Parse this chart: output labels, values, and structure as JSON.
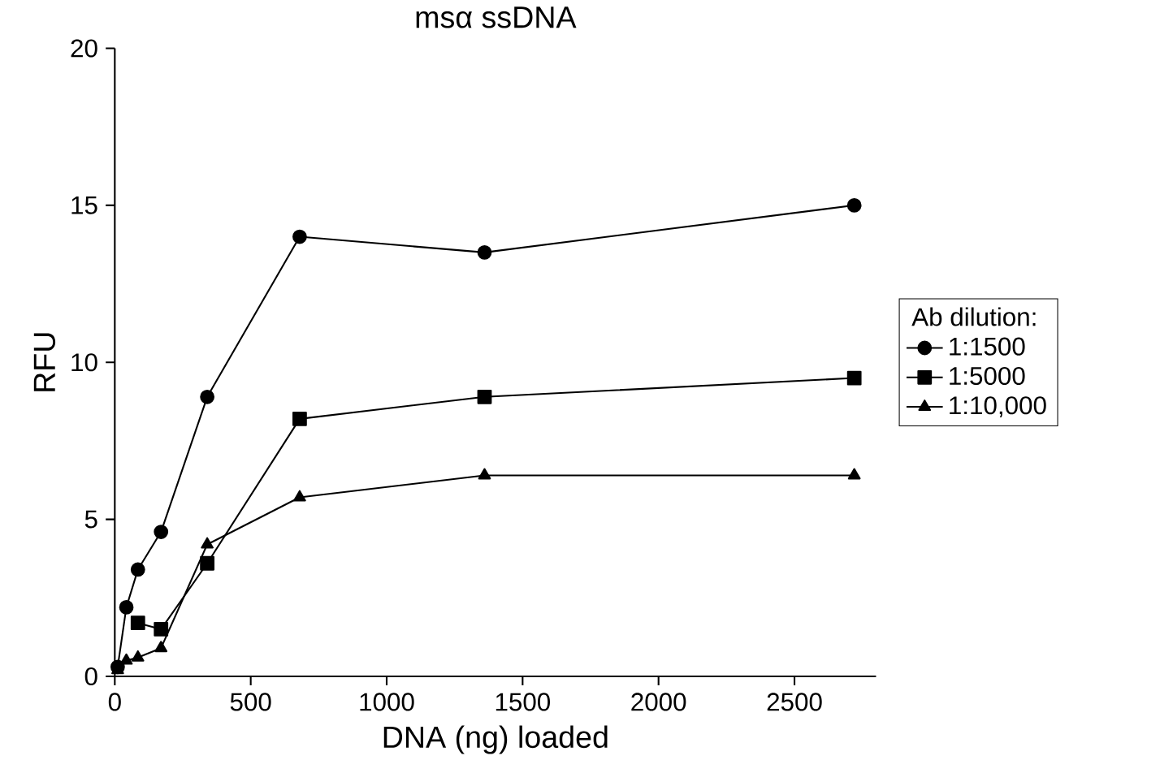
{
  "chart_data": {
    "type": "line",
    "title": "msα ssDNA",
    "xlabel": "DNA (ng) loaded",
    "ylabel": "RFU",
    "legend_title": "Ab dilution:",
    "x": [
      10.6,
      21.25,
      42.5,
      85,
      170,
      340,
      680,
      1360,
      2720
    ],
    "series": [
      {
        "name": "1:1500",
        "color": "#000000",
        "marker": "circle",
        "values": [
          0.3,
          null,
          2.2,
          3.4,
          4.6,
          8.9,
          14.0,
          13.5,
          15.0
        ]
      },
      {
        "name": "1:5000",
        "color": "#000000",
        "marker": "square",
        "values": [
          null,
          null,
          null,
          1.7,
          1.5,
          3.6,
          8.2,
          8.9,
          9.5
        ]
      },
      {
        "name": "1:10,000",
        "color": "#000000",
        "marker": "triangle",
        "values": [
          0.2,
          null,
          0.5,
          0.6,
          0.9,
          4.2,
          5.7,
          6.4,
          6.4
        ]
      }
    ],
    "xlim": [
      0,
      2800
    ],
    "ylim": [
      0,
      20
    ],
    "xticks": [
      0,
      500,
      1000,
      1500,
      2000,
      2500
    ],
    "yticks": [
      0,
      5,
      10,
      15,
      20
    ],
    "grid": false,
    "legend": "right",
    "line_style": "solid"
  }
}
